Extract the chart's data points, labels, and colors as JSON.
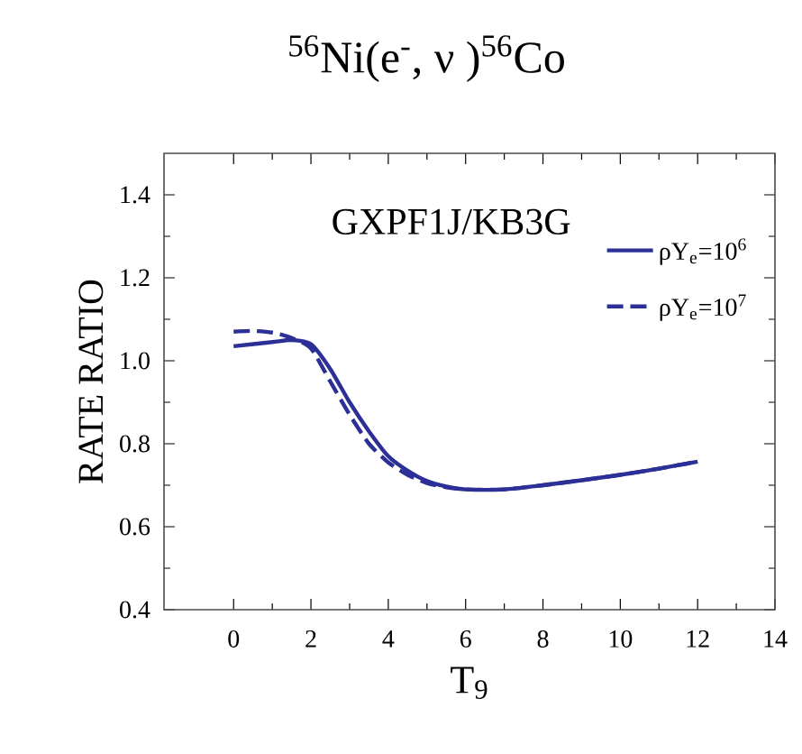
{
  "chart_data": {
    "type": "line",
    "title": "$^{56}$Ni(e$^{-}$, ν )$^{56}$Co",
    "xlabel": "T$_{9}$",
    "ylabel": "RATE RATIO",
    "annotations": [
      "GXPF1J/KB3G"
    ],
    "xlim": [
      -1.8,
      14
    ],
    "ylim": [
      0.4,
      1.5
    ],
    "xticks": [
      0,
      2,
      4,
      6,
      8,
      10,
      12,
      14
    ],
    "yticks": [
      0.4,
      0.6,
      0.8,
      {
        "value": 1.0,
        "label": "1.0"
      },
      1.2,
      1.4
    ],
    "legend": "top right",
    "marker": "none",
    "series": [
      {
        "name": "ρY$_{e}$=10$^{6}$",
        "color": "#2b2f96",
        "line_style": "solid",
        "x": [
          0,
          1,
          1.5,
          2,
          2.5,
          3,
          3.5,
          4,
          4.5,
          5,
          5.5,
          6,
          7,
          8,
          9,
          10,
          11,
          12
        ],
        "values": [
          1.035,
          1.045,
          1.05,
          1.04,
          0.98,
          0.9,
          0.83,
          0.77,
          0.735,
          0.71,
          0.697,
          0.69,
          0.69,
          0.7,
          0.712,
          0.725,
          0.74,
          0.757
        ]
      },
      {
        "name": "ρY$_{e}$=10$^{7}$",
        "color": "#2b2f96",
        "line_style": "dashed",
        "x": [
          0,
          0.5,
          1,
          1.5,
          2,
          2.5,
          3,
          3.5,
          4,
          4.5,
          5,
          5.5,
          6,
          7,
          8,
          9,
          10,
          11,
          12
        ],
        "values": [
          1.07,
          1.072,
          1.068,
          1.055,
          1.03,
          0.95,
          0.87,
          0.8,
          0.755,
          0.725,
          0.705,
          0.695,
          0.69,
          0.69,
          0.7,
          0.712,
          0.725,
          0.74,
          0.757
        ]
      }
    ]
  }
}
